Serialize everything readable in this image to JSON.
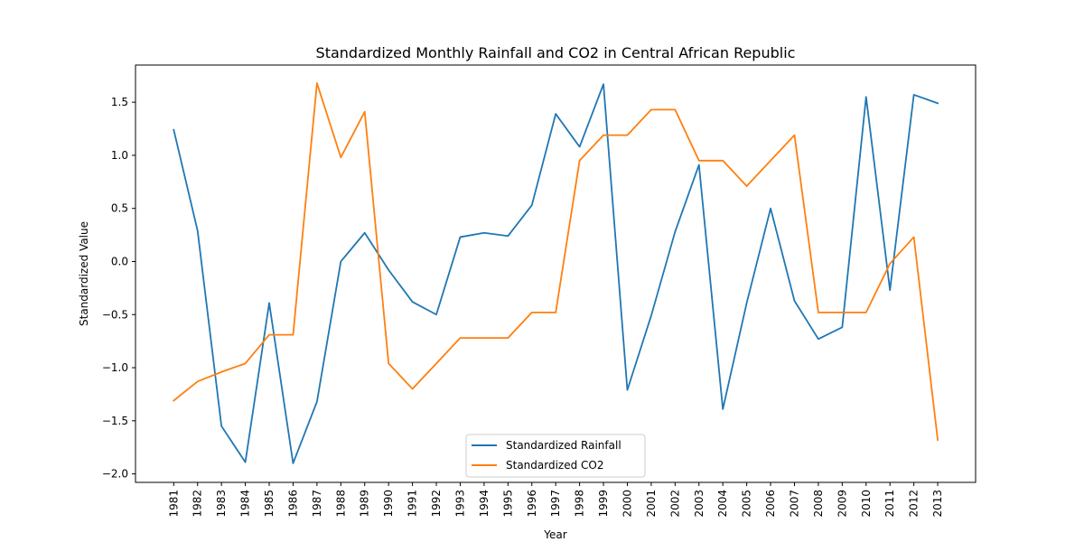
{
  "chart_data": {
    "type": "line",
    "title": "Standardized Monthly Rainfall and CO2 in Central African Republic",
    "xlabel": "Year",
    "ylabel": "Standardized Value",
    "x": [
      "1981",
      "1982",
      "1983",
      "1984",
      "1985",
      "1986",
      "1987",
      "1988",
      "1989",
      "1990",
      "1991",
      "1992",
      "1993",
      "1994",
      "1995",
      "1996",
      "1997",
      "1998",
      "1999",
      "2000",
      "2001",
      "2002",
      "2003",
      "2004",
      "2005",
      "2006",
      "2007",
      "2008",
      "2009",
      "2010",
      "2011",
      "2012",
      "2013"
    ],
    "ylim": [
      -2.08,
      1.85
    ],
    "yticks": [
      -2.0,
      -1.5,
      -1.0,
      -0.5,
      0.0,
      0.5,
      1.0,
      1.5
    ],
    "ytick_labels": [
      "−2.0",
      "−1.5",
      "−1.0",
      "−0.5",
      "0.0",
      "0.5",
      "1.0",
      "1.5"
    ],
    "grid": false,
    "legend_position": "bottom-center",
    "series": [
      {
        "name": "Standardized Rainfall",
        "color": "#1f77b4",
        "values": [
          1.24,
          0.29,
          -1.55,
          -1.89,
          -0.39,
          -1.9,
          -1.32,
          0.0,
          0.27,
          -0.08,
          -0.38,
          -0.5,
          0.23,
          0.27,
          0.24,
          0.53,
          1.39,
          1.08,
          1.67,
          -1.21,
          -0.51,
          0.28,
          0.91,
          -1.39,
          -0.39,
          0.5,
          -0.37,
          -0.73,
          -0.62,
          1.55,
          -0.27,
          1.57,
          1.49
        ]
      },
      {
        "name": "Standardized CO2",
        "color": "#ff7f0e",
        "values": [
          -1.31,
          -1.13,
          -1.04,
          -0.96,
          -0.69,
          -0.69,
          1.68,
          0.98,
          1.41,
          -0.96,
          -1.2,
          -0.96,
          -0.72,
          -0.72,
          -0.72,
          -0.48,
          -0.48,
          0.95,
          1.19,
          1.19,
          1.43,
          1.43,
          0.95,
          0.95,
          0.71,
          0.95,
          1.19,
          -0.48,
          -0.48,
          -0.48,
          -0.02,
          0.23,
          -1.68
        ]
      }
    ]
  }
}
